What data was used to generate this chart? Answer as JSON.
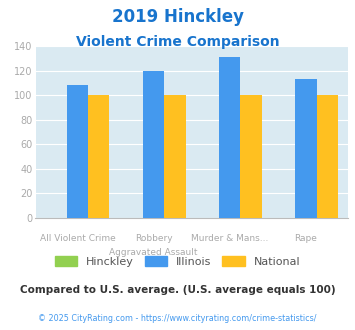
{
  "title_line1": "2019 Hinckley",
  "title_line2": "Violent Crime Comparison",
  "title_color": "#1874CD",
  "il_vals": [
    108,
    120,
    131,
    113
  ],
  "nat_vals": [
    100,
    100,
    100,
    100
  ],
  "hin_vals": [
    0,
    0,
    0,
    0
  ],
  "top_labels": [
    "",
    "Robbery",
    "Murder & Mans...",
    ""
  ],
  "bottom_labels": [
    "All Violent Crime",
    "Aggravated Assault",
    "",
    "Rape"
  ],
  "hinckley_color": "#92D050",
  "illinois_color": "#4499EE",
  "national_color": "#FFC020",
  "bg_color": "#daeaf2",
  "ylim": [
    0,
    140
  ],
  "yticks": [
    0,
    20,
    40,
    60,
    80,
    100,
    120,
    140
  ],
  "note": "Compared to U.S. average. (U.S. average equals 100)",
  "note_color": "#333333",
  "footer": "© 2025 CityRating.com - https://www.cityrating.com/crime-statistics/",
  "footer_color": "#4499EE"
}
